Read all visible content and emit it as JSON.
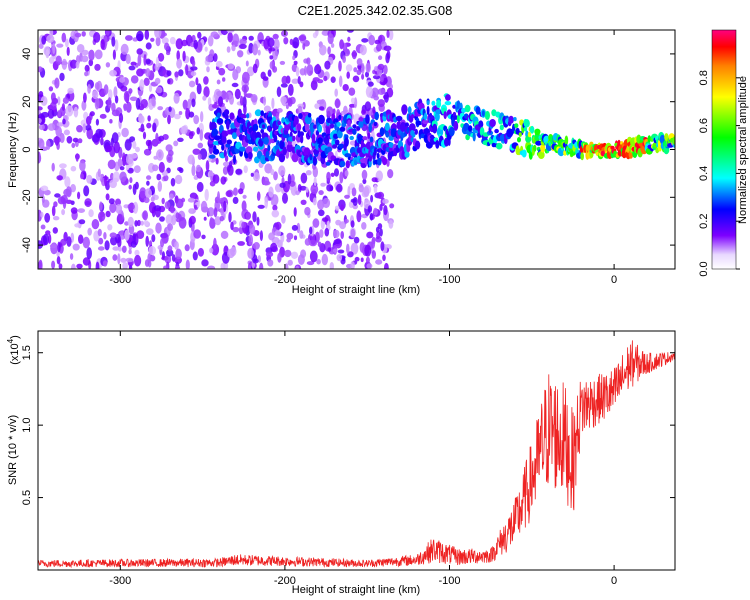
{
  "title": "C2E1.2025.342.02.35.G08",
  "chart_data": [
    {
      "type": "heatmap",
      "name": "spectrogram",
      "xlabel": "Height of straight line (km)",
      "ylabel": "Frequency (Hz)",
      "xlim": [
        -350,
        37
      ],
      "ylim": [
        -50,
        50
      ],
      "xticks": [
        -300,
        -200,
        -100,
        0
      ],
      "xtick_labels": [
        "-300",
        "-200",
        "-100",
        "0"
      ],
      "yticks": [
        -40,
        -20,
        0,
        20,
        40
      ],
      "ytick_labels": [
        "-40",
        "-20",
        "0",
        "20",
        "40"
      ],
      "colorbar": {
        "label": "Normalized spectral amplitude",
        "range": [
          0,
          1
        ],
        "ticks": [
          0.0,
          0.2,
          0.4,
          0.6,
          0.8
        ],
        "tick_labels": [
          "0.0",
          "0.2",
          "0.4",
          "0.6",
          "0.8"
        ],
        "colors": [
          "#ffffff",
          "#7d00ff",
          "#0000ff",
          "#00ffff",
          "#00ff00",
          "#ffff00",
          "#ff8000",
          "#ff0000",
          "#ff0080"
        ]
      },
      "features": {
        "noise_region_x": [
          -350,
          -135
        ],
        "noise_amplitude": "low (0.0-0.2)",
        "trace": [
          {
            "x": -240,
            "y": 6
          },
          {
            "x": -200,
            "y": 5
          },
          {
            "x": -150,
            "y": 3
          },
          {
            "x": -100,
            "y": 13
          },
          {
            "x": -80,
            "y": 10
          },
          {
            "x": -60,
            "y": 6
          },
          {
            "x": -40,
            "y": 3
          },
          {
            "x": -20,
            "y": 0
          },
          {
            "x": 0,
            "y": 0
          },
          {
            "x": 20,
            "y": 2
          },
          {
            "x": 37,
            "y": 3
          }
        ],
        "peak_amplitude_x": [
          -20,
          20
        ]
      }
    },
    {
      "type": "line",
      "name": "snr",
      "xlabel": "Height of straight line (km)",
      "ylabel": "SNR (10 * v/v)",
      "multiplier_label": "(x10",
      "multiplier_exponent": "4",
      "multiplier_close": ")",
      "xlim": [
        -350,
        37
      ],
      "ylim": [
        0,
        1.65
      ],
      "xticks": [
        -300,
        -200,
        -100,
        0
      ],
      "xtick_labels": [
        "-300",
        "-200",
        "-100",
        "0"
      ],
      "yticks": [
        0.5,
        1.0,
        1.5
      ],
      "ytick_labels": [
        "0.5",
        "1.0",
        "1.5"
      ],
      "color": "#ee2222",
      "series": [
        {
          "name": "SNR",
          "envelope": [
            {
              "x": -350,
              "base": 0.02,
              "spread": 0.05
            },
            {
              "x": -240,
              "base": 0.02,
              "spread": 0.06
            },
            {
              "x": -230,
              "base": 0.03,
              "spread": 0.08
            },
            {
              "x": -150,
              "base": 0.02,
              "spread": 0.05
            },
            {
              "x": -120,
              "base": 0.03,
              "spread": 0.08
            },
            {
              "x": -110,
              "base": 0.05,
              "spread": 0.18
            },
            {
              "x": -95,
              "base": 0.03,
              "spread": 0.12
            },
            {
              "x": -75,
              "base": 0.05,
              "spread": 0.1
            },
            {
              "x": -60,
              "base": 0.15,
              "spread": 0.35
            },
            {
              "x": -50,
              "base": 0.35,
              "spread": 0.55
            },
            {
              "x": -40,
              "base": 0.55,
              "spread": 0.85
            },
            {
              "x": -30,
              "base": 0.5,
              "spread": 0.8
            },
            {
              "x": -25,
              "base": 0.35,
              "spread": 0.75
            },
            {
              "x": -20,
              "base": 0.9,
              "spread": 0.45
            },
            {
              "x": -10,
              "base": 1.0,
              "spread": 0.35
            },
            {
              "x": 0,
              "base": 1.05,
              "spread": 0.35
            },
            {
              "x": 10,
              "base": 1.25,
              "spread": 0.35
            },
            {
              "x": 20,
              "base": 1.35,
              "spread": 0.15
            },
            {
              "x": 37,
              "base": 1.45,
              "spread": 0.06
            }
          ]
        }
      ]
    }
  ]
}
